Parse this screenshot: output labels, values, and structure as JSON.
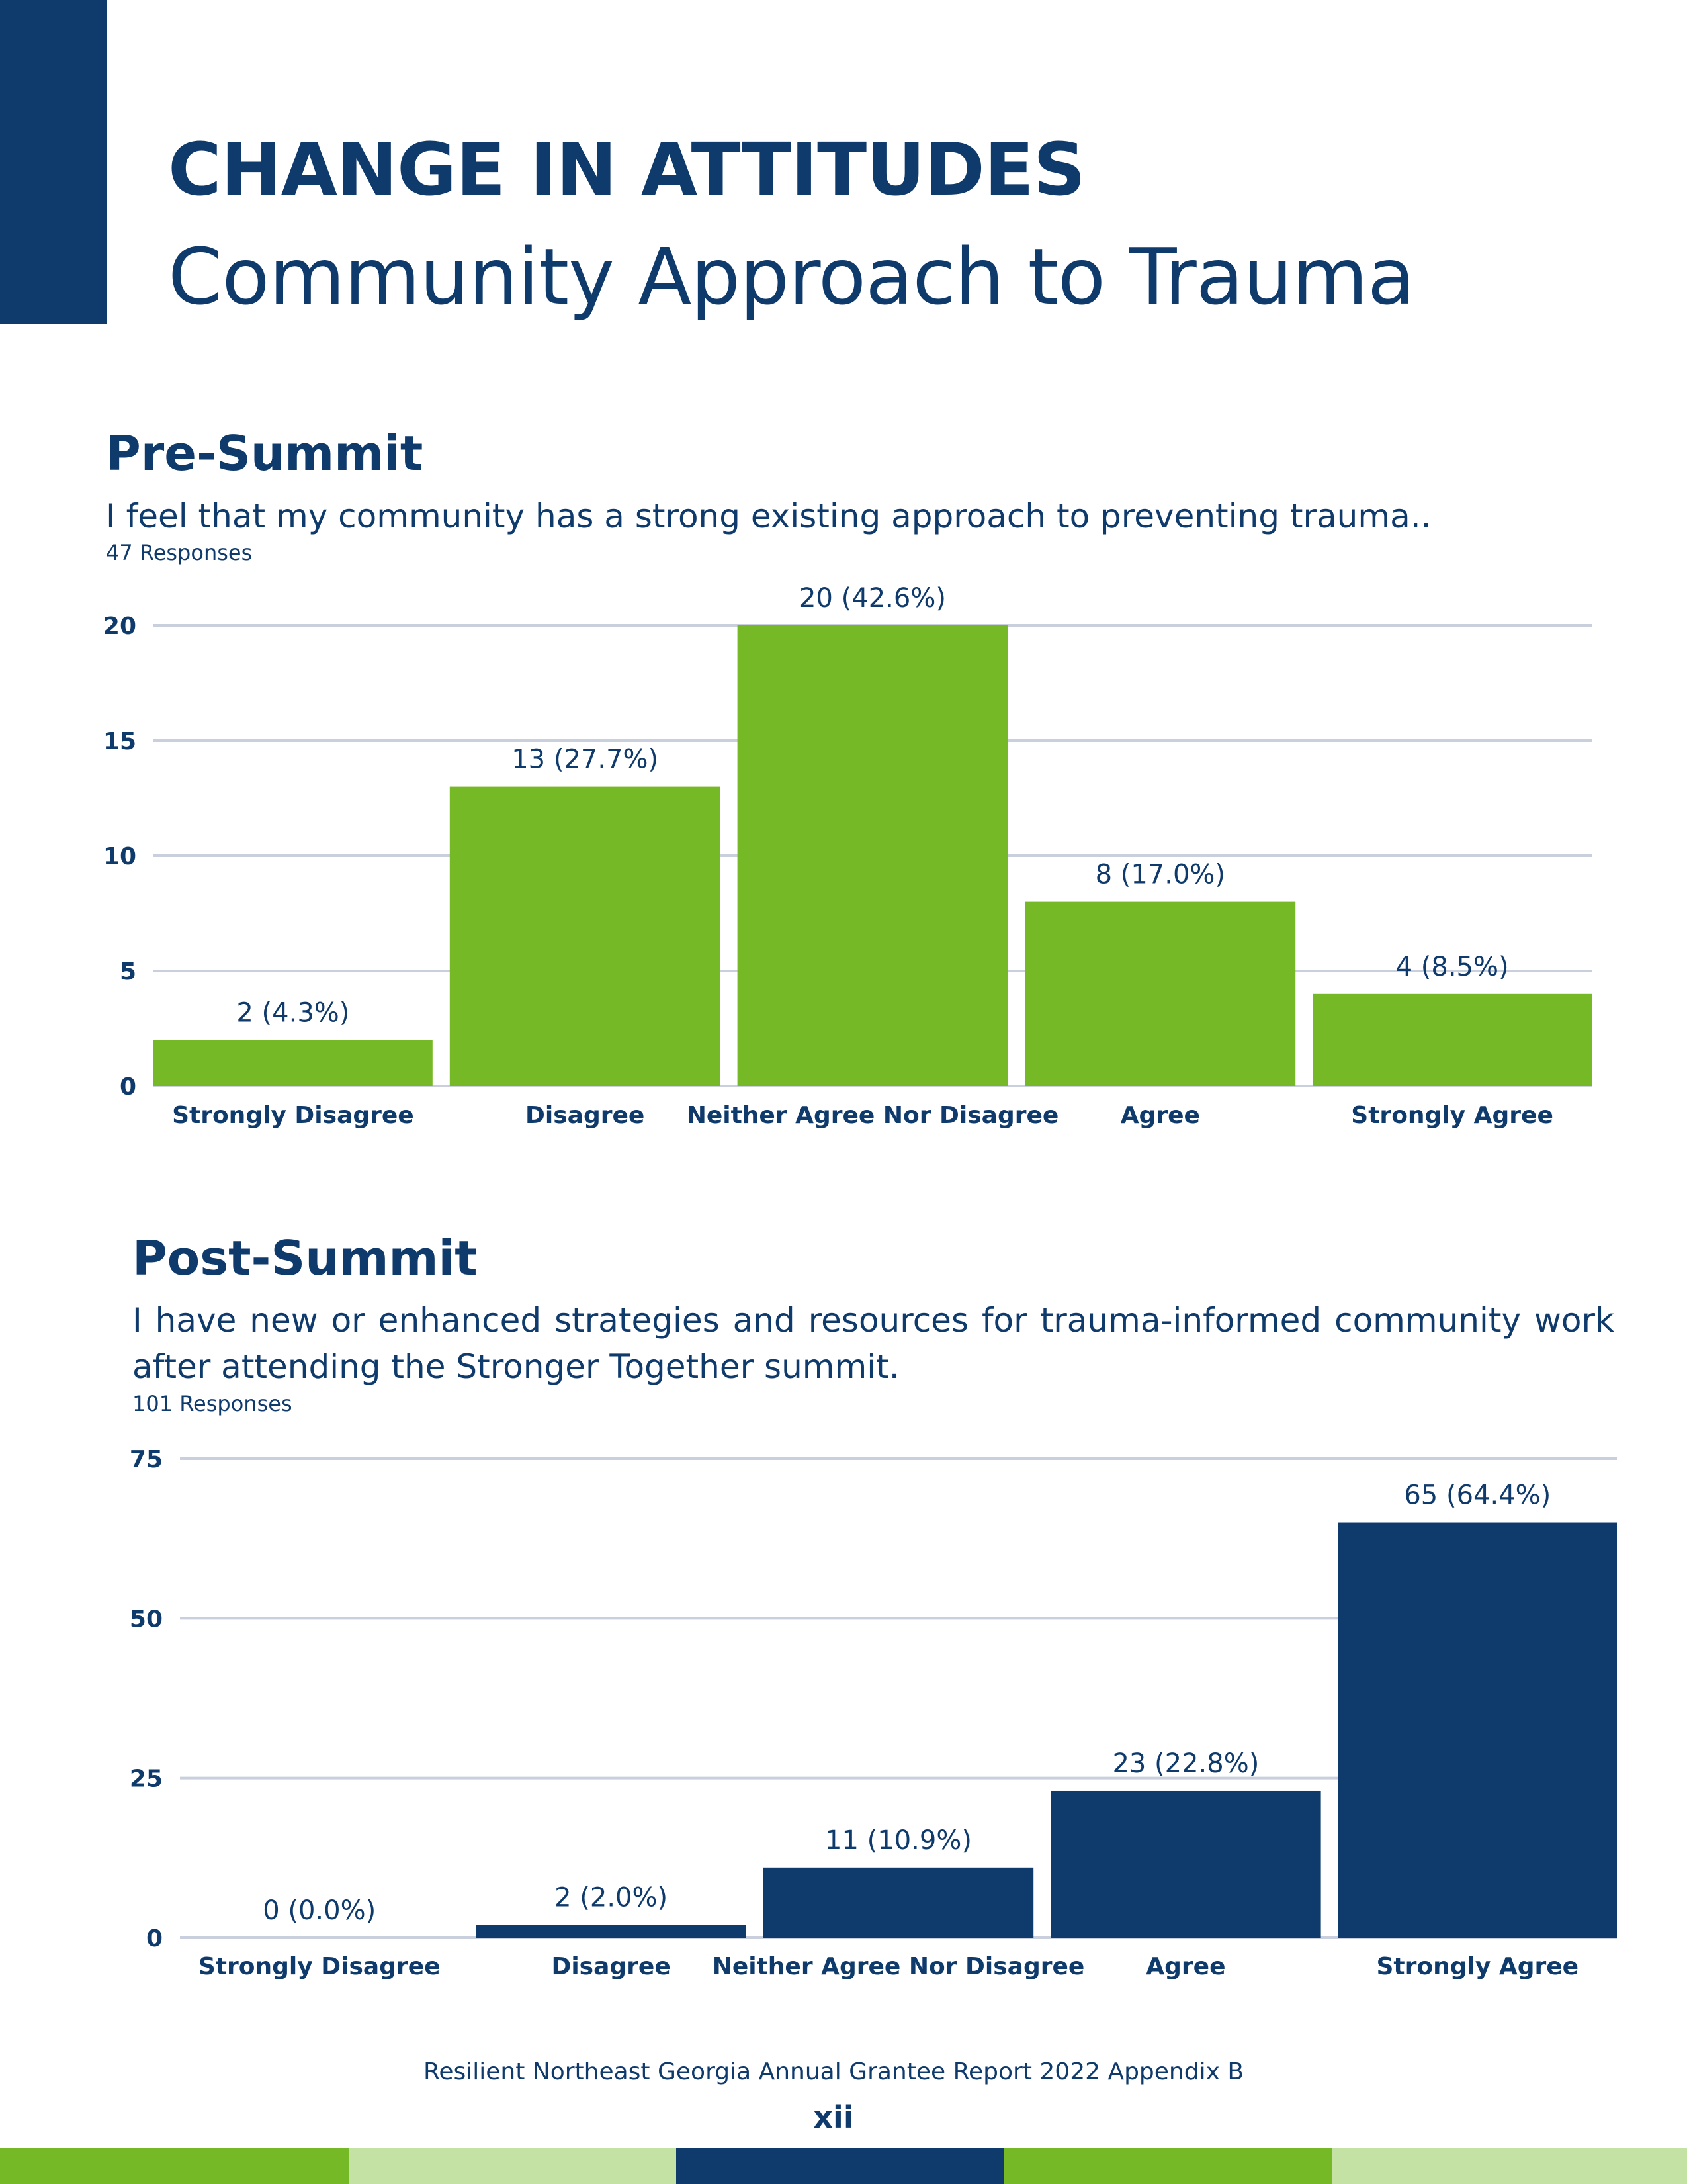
{
  "header": {
    "title": "CHANGE IN ATTITUDES",
    "subtitle": "Community Approach to Trauma"
  },
  "pre": {
    "heading": "Pre-Summit",
    "question": "I feel that my community has a strong existing approach to preventing trauma..",
    "responses": "47 Responses"
  },
  "post": {
    "heading": "Post-Summit",
    "question": "I have new or enhanced strategies and resources for trauma-informed community work after attending the Stronger Together summit.",
    "responses": "101 Responses"
  },
  "chart_data": [
    {
      "type": "bar",
      "categories": [
        "Strongly Disagree",
        "Disagree",
        "Neither Agree Nor Disagree",
        "Agree",
        "Strongly Agree"
      ],
      "values": [
        2,
        13,
        20,
        8,
        4
      ],
      "data_labels": [
        "2 (4.3%)",
        "13 (27.7%)",
        "20 (42.6%)",
        "8 (17.0%)",
        "4 (8.5%)"
      ],
      "yticks": [
        0,
        5,
        10,
        15,
        20
      ],
      "ylim": [
        0,
        20
      ],
      "grid": true,
      "color": "#76b926"
    },
    {
      "type": "bar",
      "categories": [
        "Strongly Disagree",
        "Disagree",
        "Neither Agree Nor Disagree",
        "Agree",
        "Strongly Agree"
      ],
      "values": [
        0,
        2,
        11,
        23,
        65
      ],
      "data_labels": [
        "0 (0.0%)",
        "2 (2.0%)",
        "11 (10.9%)",
        "23 (22.8%)",
        "65 (64.4%)"
      ],
      "yticks": [
        0,
        25,
        50,
        75
      ],
      "ylim": [
        0,
        75
      ],
      "grid": true,
      "color": "#0f3a6c"
    }
  ],
  "footer": {
    "text": "Resilient Northeast Georgia Annual Grantee Report 2022 Appendix B",
    "page": "xii"
  },
  "colors": {
    "navy": "#0f3a6c",
    "green": "#76b926",
    "light_green": "#c4e2a4",
    "grid": "#c9cfdc"
  }
}
